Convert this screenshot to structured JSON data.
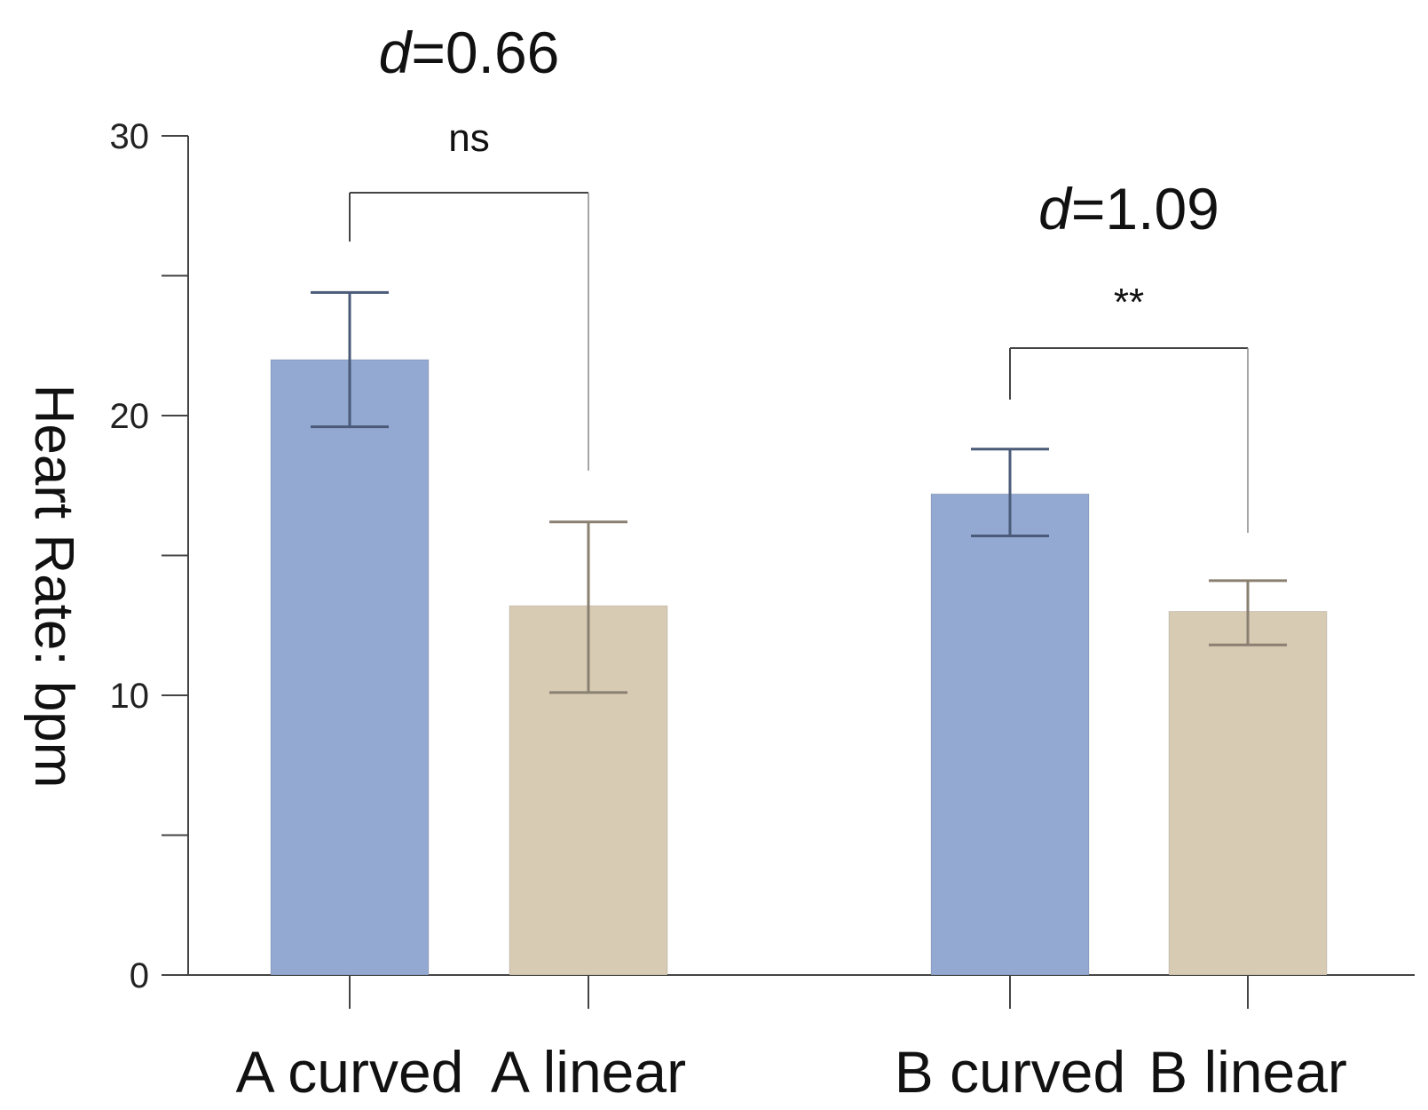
{
  "chart_data": {
    "type": "bar",
    "title": "",
    "xlabel": "",
    "ylabel": "Heart Rate: bpm",
    "ylim": [
      0,
      30
    ],
    "yticks": [
      0,
      10,
      20,
      30
    ],
    "grid": false,
    "categories": [
      "A curved",
      "A linear",
      "B curved",
      "B linear"
    ],
    "values": [
      22.0,
      13.2,
      17.2,
      13.0
    ],
    "errors": [
      {
        "low": 19.6,
        "high": 24.4
      },
      {
        "low": 10.1,
        "high": 16.2
      },
      {
        "low": 15.7,
        "high": 18.8
      },
      {
        "low": 11.8,
        "high": 14.1
      }
    ],
    "colors": [
      "#93a9d2",
      "#d8cbb3",
      "#93a9d2",
      "#d8cbb3"
    ],
    "error_colors": [
      "#4a5a78",
      "#8a8072",
      "#4a5a78",
      "#8a8072"
    ],
    "comparisons": [
      {
        "pair": [
          0,
          1
        ],
        "significance": "ns",
        "effect_var": "d",
        "effect_value": "=0.66"
      },
      {
        "pair": [
          2,
          3
        ],
        "significance": "**",
        "effect_var": "d",
        "effect_value": "=1.09"
      }
    ]
  }
}
